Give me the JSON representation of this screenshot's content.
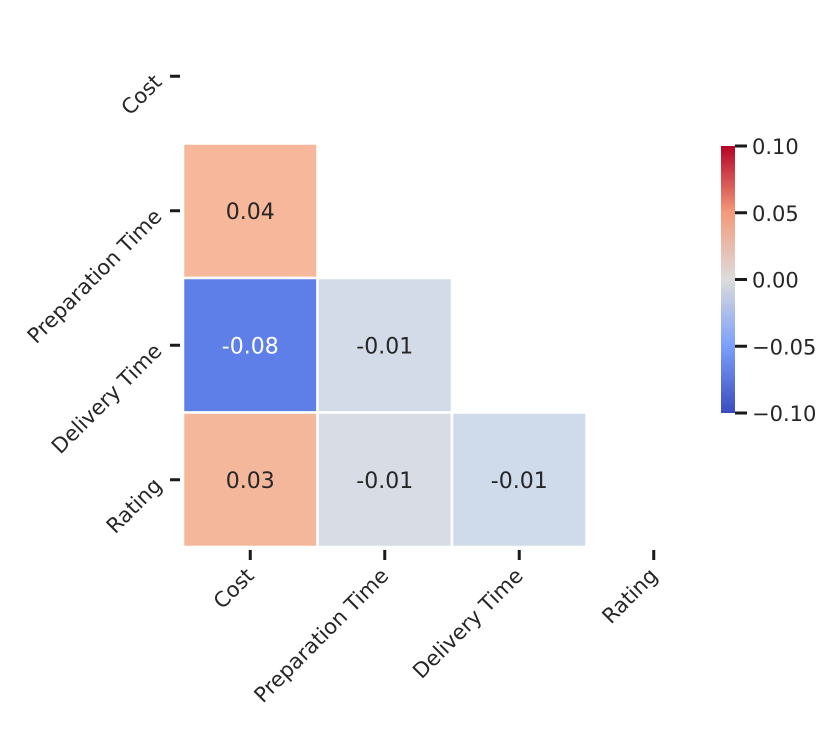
{
  "chart_data": {
    "type": "heatmap",
    "title": "",
    "xlabel": "",
    "ylabel": "",
    "labels": [
      "Cost",
      "Preparation Time",
      "Delivery Time",
      "Rating"
    ],
    "mask": "upper-triangle-including-diagonal",
    "cells": [
      {
        "row": 1,
        "col": 0,
        "value": 0.04,
        "label": "0.04",
        "color": "#f6b79a"
      },
      {
        "row": 2,
        "col": 0,
        "value": -0.08,
        "label": "-0.08",
        "color": "#5f7fe8"
      },
      {
        "row": 2,
        "col": 1,
        "value": -0.01,
        "label": "-0.01",
        "color": "#d3dae8"
      },
      {
        "row": 3,
        "col": 0,
        "value": 0.03,
        "label": "0.03",
        "color": "#f5b79b"
      },
      {
        "row": 3,
        "col": 1,
        "value": -0.01,
        "label": "-0.01",
        "color": "#d7dce5"
      },
      {
        "row": 3,
        "col": 2,
        "value": -0.01,
        "label": "-0.01",
        "color": "#cfdaea"
      }
    ],
    "colorbar": {
      "colormap": "coolwarm",
      "vmin": -0.1,
      "vmax": 0.1,
      "ticks": [
        {
          "value": 0.1,
          "label": "0.10"
        },
        {
          "value": 0.05,
          "label": "0.05"
        },
        {
          "value": 0.0,
          "label": "0.00"
        },
        {
          "value": -0.05,
          "label": "−0.05"
        },
        {
          "value": -0.1,
          "label": "−0.10"
        }
      ],
      "stops": [
        {
          "value": -0.1,
          "color": "#3b4cc0"
        },
        {
          "value": -0.05,
          "color": "#7b9ff9"
        },
        {
          "value": 0.0,
          "color": "#dddcdc"
        },
        {
          "value": 0.05,
          "color": "#f49a7b"
        },
        {
          "value": 0.1,
          "color": "#b40426"
        }
      ]
    },
    "text_colors": {
      "dark": "#262626",
      "light": "#ffffff"
    },
    "grid": false,
    "legend": "none"
  }
}
